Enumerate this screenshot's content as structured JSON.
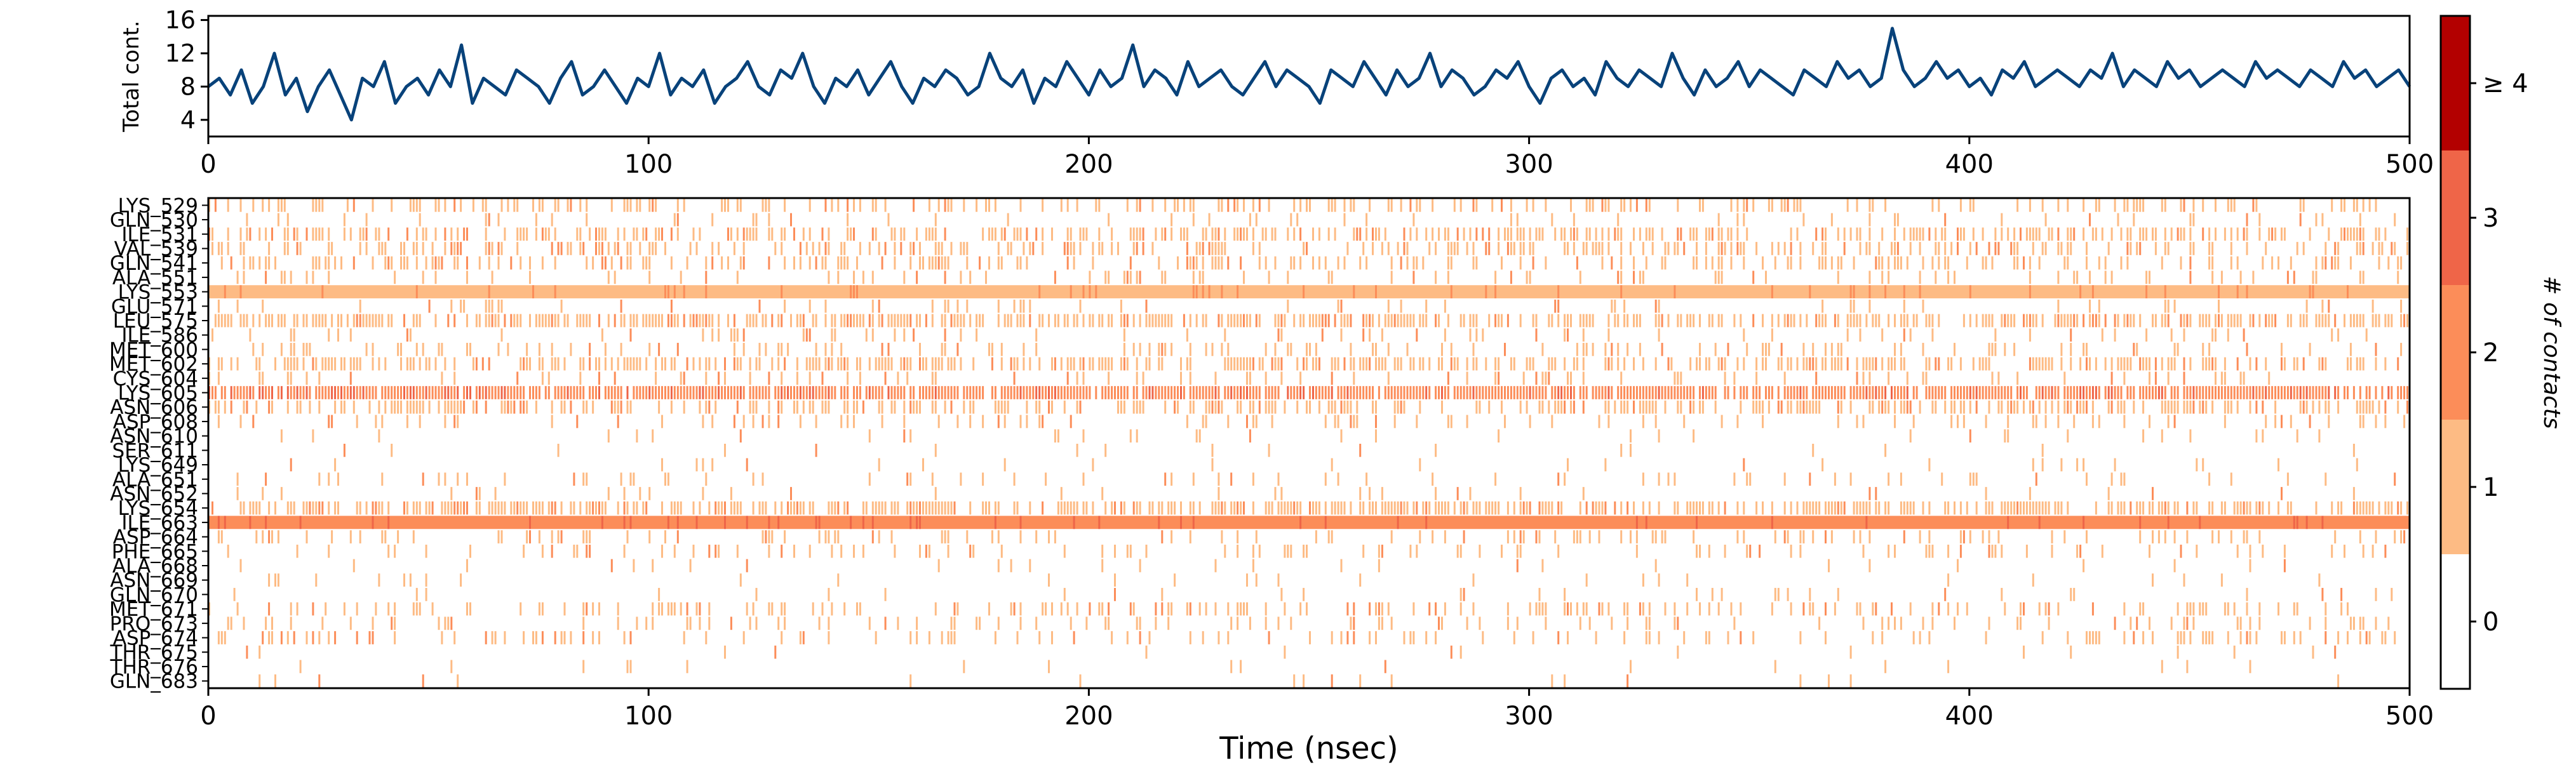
{
  "chart_data": [
    {
      "type": "line",
      "ylabel": "Total cont.",
      "xlabel": "",
      "xlim": [
        0,
        500
      ],
      "ylim": [
        2,
        16.5
      ],
      "xticks": [
        "0",
        "100",
        "200",
        "300",
        "400",
        "500"
      ],
      "yticks": [
        "4",
        "8",
        "12",
        "16"
      ],
      "line_color": "#08427a",
      "series": [
        {
          "x_step": 2.5,
          "values": [
            8,
            9,
            7,
            10,
            6,
            8,
            12,
            7,
            9,
            5,
            8,
            10,
            7,
            4,
            9,
            8,
            11,
            6,
            8,
            9,
            7,
            10,
            8,
            13,
            6,
            9,
            8,
            7,
            10,
            9,
            8,
            6,
            9,
            11,
            7,
            8,
            10,
            8,
            6,
            9,
            8,
            12,
            7,
            9,
            8,
            10,
            6,
            8,
            9,
            11,
            8,
            7,
            10,
            9,
            12,
            8,
            6,
            9,
            8,
            10,
            7,
            9,
            11,
            8,
            6,
            9,
            8,
            10,
            9,
            7,
            8,
            12,
            9,
            8,
            10,
            6,
            9,
            8,
            11,
            9,
            7,
            10,
            8,
            9,
            13,
            8,
            10,
            9,
            7,
            11,
            8,
            9,
            10,
            8,
            7,
            9,
            11,
            8,
            10,
            9,
            8,
            6,
            10,
            9,
            8,
            11,
            9,
            7,
            10,
            8,
            9,
            12,
            8,
            10,
            9,
            7,
            8,
            10,
            9,
            11,
            8,
            6,
            9,
            10,
            8,
            9,
            7,
            11,
            9,
            8,
            10,
            9,
            8,
            12,
            9,
            7,
            10,
            8,
            9,
            11,
            8,
            10,
            9,
            8,
            7,
            10,
            9,
            8,
            11,
            9,
            10,
            8,
            9,
            15,
            10,
            8,
            9,
            11,
            9,
            10,
            8,
            9,
            7,
            10,
            9,
            11,
            8,
            9,
            10,
            9,
            8,
            10,
            9,
            12,
            8,
            10,
            9,
            8,
            11,
            9,
            10,
            8,
            9,
            10,
            9,
            8,
            11,
            9,
            10,
            9,
            8,
            10,
            9,
            8,
            11,
            9,
            10,
            8,
            9,
            10,
            8
          ]
        }
      ]
    },
    {
      "type": "heatmap",
      "xlabel": "Time (nsec)",
      "xlim": [
        0,
        500
      ],
      "xticks": [
        "0",
        "100",
        "200",
        "300",
        "400",
        "500"
      ],
      "rows": [
        "LYS_529",
        "GLN_530",
        "ILE_531",
        "VAL_539",
        "GLN_541",
        "ALA_551",
        "LYS_553",
        "GLU_571",
        "LEU_575",
        "ILE_586",
        "MET_600",
        "MET_602",
        "CYS_604",
        "LYS_605",
        "ASN_606",
        "ASP_608",
        "ASN_610",
        "SER_611",
        "LYS_649",
        "ALA_651",
        "ASN_652",
        "LYS_654",
        "ILE_663",
        "ASP_664",
        "PHE_665",
        "ALA_668",
        "ASN_669",
        "GLN_670",
        "MET_671",
        "PRO_673",
        "ASP_674",
        "THR_675",
        "THR_676",
        "GLN_683"
      ],
      "row_density": [
        0.3,
        0.08,
        0.45,
        0.35,
        0.3,
        0.15,
        1.0,
        0.1,
        0.6,
        0.1,
        0.2,
        0.5,
        0.15,
        0.9,
        0.4,
        0.15,
        0.05,
        0.02,
        0.05,
        0.1,
        0.05,
        0.6,
        1.0,
        0.2,
        0.15,
        0.05,
        0.03,
        0.05,
        0.25,
        0.15,
        0.2,
        0.02,
        0.02,
        0.03
      ],
      "row_level": [
        1,
        1,
        1,
        1,
        1,
        1,
        1,
        1,
        1,
        1,
        1,
        1,
        1,
        2,
        1,
        1,
        1,
        1,
        1,
        1,
        1,
        1,
        2,
        1,
        1,
        1,
        1,
        1,
        1,
        1,
        1,
        1,
        1,
        1
      ],
      "colorbar": {
        "label": "# of contacts",
        "ticks": [
          "0",
          "1",
          "2",
          "3",
          "≥ 4"
        ],
        "colors": [
          "#ffffff",
          "#fdbb84",
          "#fc8d59",
          "#ef6548",
          "#b30000"
        ]
      }
    }
  ]
}
